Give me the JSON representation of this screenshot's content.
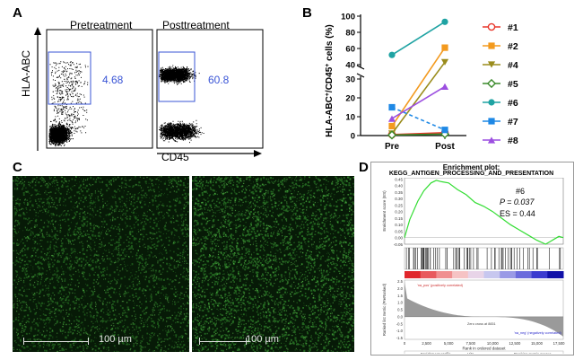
{
  "panels": {
    "a": "A",
    "b": "B",
    "c": "C",
    "d": "D"
  },
  "panel_a": {
    "ylabel": "HLA-ABC",
    "xlabel": "CD45",
    "plots": [
      {
        "title": "Pretreatment",
        "gate_value": "4.68"
      },
      {
        "title": "Posttreatment",
        "gate_value": "60.8"
      }
    ]
  },
  "panel_c": {
    "scalebar_label": "100 µm"
  },
  "colors": {
    "gate": "#3a55d6",
    "enrichment": "#33dd33"
  },
  "chart_data": [
    {
      "type": "line",
      "x": [
        "Pre",
        "Post"
      ],
      "ylabel": "HLA-ABC+/CD45+ cells (%)",
      "ylabel_parts": {
        "a": "HLA-ABC",
        "sup1": "+",
        "b": "/CD45",
        "sup2": "+",
        "c": " cells (%)"
      },
      "y_upper_ticks": [
        "40",
        "60",
        "80",
        "100"
      ],
      "y_lower_ticks": [
        "0",
        "10",
        "20",
        "30"
      ],
      "axis_break": true,
      "series": [
        {
          "name": "#1",
          "values": [
            0.5,
            1.5
          ],
          "color": "#e8362b",
          "marker": "circle-open",
          "dash": false
        },
        {
          "name": "#2",
          "values": [
            5,
            61
          ],
          "color": "#f39a1e",
          "marker": "square",
          "dash": false
        },
        {
          "name": "#4",
          "values": [
            1,
            43
          ],
          "color": "#9a8c1c",
          "marker": "triangle-down",
          "dash": false
        },
        {
          "name": "#5",
          "values": [
            0.3,
            0.8
          ],
          "color": "#3a8a2a",
          "marker": "diamond-open",
          "dash": false
        },
        {
          "name": "#6",
          "values": [
            52,
            93
          ],
          "color": "#1fa3a3",
          "marker": "circle",
          "dash": false
        },
        {
          "name": "#7",
          "values": [
            15,
            3
          ],
          "color": "#1e88e5",
          "marker": "square",
          "dash": true
        },
        {
          "name": "#8",
          "values": [
            9,
            26
          ],
          "color": "#9c4fe0",
          "marker": "triangle-up",
          "dash": false
        }
      ]
    },
    {
      "type": "line",
      "title": "Enrichment plot:",
      "subtitle": "KEGG_ANTIGEN_PROCESSING_AND_PRESENTATION",
      "annotation": {
        "label": "#6",
        "p": "P = 0.037",
        "es": "ES = 0.44"
      },
      "ylabel": "Enrichment score (ES)",
      "ylabel2": "Ranked list metric (PreRanked)",
      "xlabel": "Rank in ordered dataset",
      "y_ticks": [
        "0.45",
        "0.40",
        "0.35",
        "0.30",
        "0.25",
        "0.20",
        "0.15",
        "0.10",
        "0.05",
        "0.00",
        "-0.05"
      ],
      "x_ticks": [
        "0",
        "2,500",
        "5,000",
        "7,500",
        "10,000",
        "12,500",
        "15,000",
        "17,500"
      ],
      "rank_ticks": [
        "2.5",
        "2.0",
        "1.5",
        "1.0",
        "0.5",
        "0.0",
        "-0.5",
        "-1.0",
        "-1.5"
      ],
      "pos_label": "'na_pos' (positively correlated)",
      "neg_label": "'na_neg' (negatively correlated)",
      "zero_label": "Zero cross at 8831",
      "legend": [
        "Enrichment profile",
        "Hits",
        "Ranking metric scores"
      ],
      "x": [
        0,
        600,
        1500,
        2200,
        3000,
        3600,
        4200,
        5000,
        6000,
        7000,
        8000,
        9000,
        10000,
        11000,
        12000,
        13000,
        14000,
        15000,
        16000,
        16500,
        17000,
        17500,
        18000
      ],
      "values": [
        0.0,
        0.14,
        0.28,
        0.36,
        0.42,
        0.44,
        0.43,
        0.42,
        0.37,
        0.33,
        0.27,
        0.24,
        0.2,
        0.15,
        0.1,
        0.06,
        0.02,
        -0.02,
        -0.05,
        -0.03,
        -0.01,
        0.01,
        0.0
      ]
    }
  ]
}
